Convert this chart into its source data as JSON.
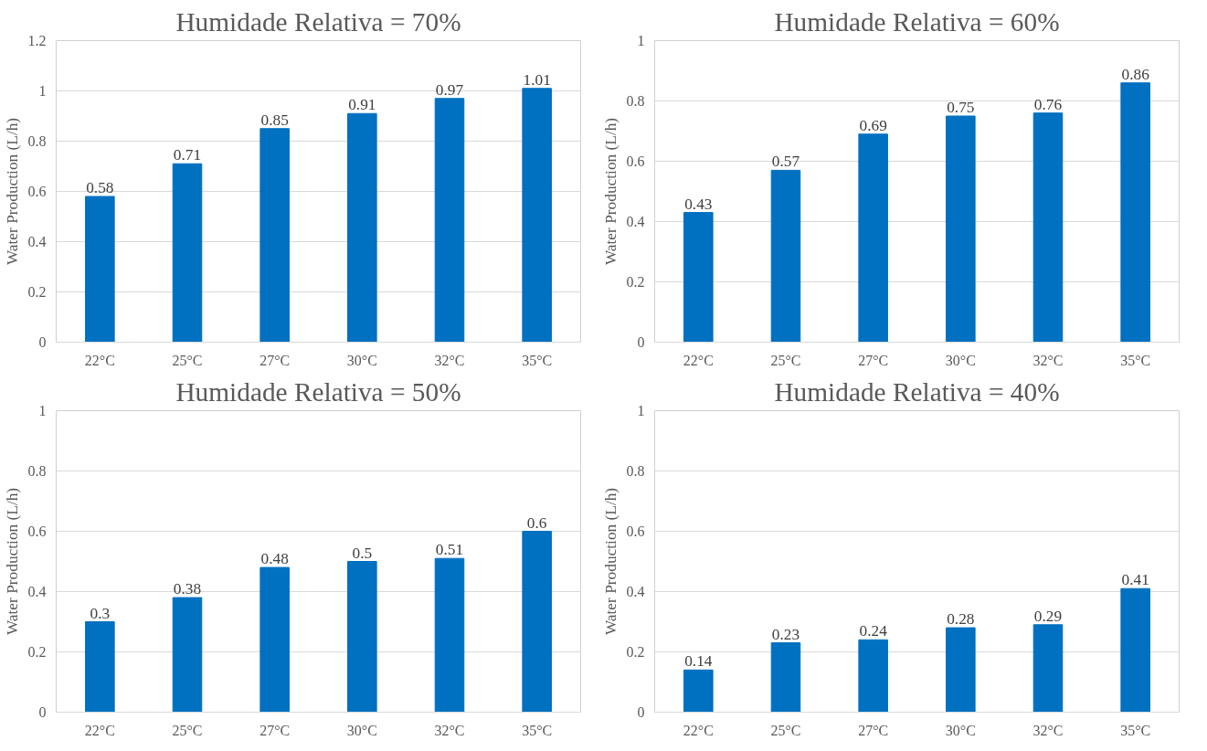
{
  "chart_data": [
    {
      "type": "bar",
      "title": "Humidade Relativa = 70%",
      "ylabel": "Water Production (L/h)",
      "categories": [
        "22°C",
        "25°C",
        "27°C",
        "30°C",
        "32°C",
        "35°C"
      ],
      "values": [
        0.58,
        0.71,
        0.85,
        0.91,
        0.97,
        1.01
      ],
      "color": "#0070c0",
      "ylim": [
        0,
        1.2
      ],
      "yticks": [
        0,
        0.2,
        0.4,
        0.6,
        0.8,
        1,
        1.2
      ],
      "grid": "y",
      "data_labels": true
    },
    {
      "type": "bar",
      "title": "Humidade Relativa = 60%",
      "ylabel": "Water Production (L/h)",
      "categories": [
        "22°C",
        "25°C",
        "27°C",
        "30°C",
        "32°C",
        "35°C"
      ],
      "values": [
        0.43,
        0.57,
        0.69,
        0.75,
        0.76,
        0.86
      ],
      "color": "#0070c0",
      "ylim": [
        0,
        1
      ],
      "yticks": [
        0,
        0.2,
        0.4,
        0.6,
        0.8,
        1
      ],
      "grid": "y",
      "data_labels": true
    },
    {
      "type": "bar",
      "title": "Humidade Relativa = 50%",
      "ylabel": "Water Production (L/h)",
      "categories": [
        "22°C",
        "25°C",
        "27°C",
        "30°C",
        "32°C",
        "35°C"
      ],
      "values": [
        0.3,
        0.38,
        0.48,
        0.5,
        0.51,
        0.6
      ],
      "color": "#0070c0",
      "ylim": [
        0,
        1
      ],
      "yticks": [
        0,
        0.2,
        0.4,
        0.6,
        0.8,
        1
      ],
      "grid": "y",
      "data_labels": true
    },
    {
      "type": "bar",
      "title": "Humidade Relativa = 40%",
      "ylabel": "Water Production (L/h)",
      "categories": [
        "22°C",
        "25°C",
        "27°C",
        "30°C",
        "32°C",
        "35°C"
      ],
      "values": [
        0.14,
        0.23,
        0.24,
        0.28,
        0.29,
        0.41
      ],
      "color": "#0070c0",
      "ylim": [
        0,
        1
      ],
      "yticks": [
        0,
        0.2,
        0.4,
        0.6,
        0.8,
        1
      ],
      "grid": "y",
      "data_labels": true
    }
  ]
}
